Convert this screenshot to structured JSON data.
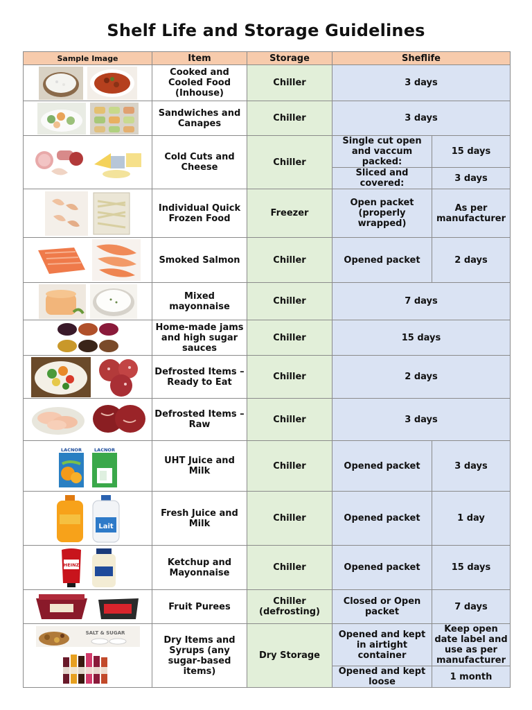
{
  "title": "Shelf Life and Storage Guidelines",
  "headers": {
    "image": "Sample Image",
    "item": "Item",
    "storage": "Storage",
    "shelflife": "Sheflife"
  },
  "rows": [
    {
      "item": "Cooked and Cooled Food (Inhouse)",
      "storage": "Chiller",
      "shelflife": "3 days"
    },
    {
      "item": "Sandwiches and Canapes",
      "storage": "Chiller",
      "shelflife": "3 days"
    },
    {
      "item": "Cold Cuts and Cheese",
      "storage": "Chiller",
      "sub": [
        {
          "condition": "Single cut open and vaccum packed:",
          "duration": "15 days"
        },
        {
          "condition": "Sliced and covered:",
          "duration": "3 days"
        }
      ]
    },
    {
      "item": "Individual Quick Frozen Food",
      "storage": "Freezer",
      "condition": "Open packet (properly wrapped)",
      "duration": "As per manufacturer"
    },
    {
      "item": "Smoked Salmon",
      "storage": "Chiller",
      "condition": "Opened packet",
      "duration": "2 days"
    },
    {
      "item": "Mixed mayonnaise",
      "storage": "Chiller",
      "shelflife": "7 days"
    },
    {
      "item": "Home-made jams and high sugar sauces",
      "storage": "Chiller",
      "shelflife": "15 days"
    },
    {
      "item": "Defrosted Items – Ready to Eat",
      "storage": "Chiller",
      "shelflife": "2 days"
    },
    {
      "item": "Defrosted Items – Raw",
      "storage": "Chiller",
      "shelflife": "3 days"
    },
    {
      "item": "UHT Juice and Milk",
      "storage": "Chiller",
      "condition": "Opened packet",
      "duration": "3 days"
    },
    {
      "item": "Fresh Juice and Milk",
      "storage": "Chiller",
      "condition": "Opened packet",
      "duration": "1 day"
    },
    {
      "item": "Ketchup and Mayonnaise",
      "storage": "Chiller",
      "condition": "Opened packet",
      "duration": "15 days"
    },
    {
      "item": "Fruit Purees",
      "storage": "Chiller (defrosting)",
      "condition": "Closed or Open packet",
      "duration": "7 days"
    },
    {
      "item": "Dry Items and Syrups (any sugar-based items)",
      "storage": "Dry Storage",
      "sub": [
        {
          "condition": "Opened and kept in airtight container",
          "duration": "Keep open date label and use as per manufacturer"
        },
        {
          "condition": "Opened and kept loose",
          "duration": "1 month"
        }
      ]
    }
  ],
  "image_labels": {
    "uht_brand_1": "LACNOR",
    "uht_brand_2": "LACNOR",
    "milk_brand": "Lait",
    "ketchup_brand": "HEINZ",
    "syrup_banner": "SALT & SUGAR"
  },
  "icons": [
    "rice-bowl-photo",
    "stew-bowl-photo",
    "canape-plate-photo",
    "canape-tray-photo",
    "cold-cuts-photo",
    "cheese-photo",
    "shrimp-bag-photo",
    "noodle-bag-photo",
    "salmon-fillet-photo",
    "smoked-salmon-photo",
    "mayo-dip-photo",
    "yogurt-dip-photo",
    "jam-bowls-photo",
    "salad-plate-photo",
    "salami-photo",
    "raw-chicken-photo",
    "raw-beef-photo",
    "juice-carton-photo",
    "milk-carton-photo",
    "orange-juice-bottle-photo",
    "milk-jug-photo",
    "ketchup-bottle-photo",
    "mayo-jar-photo",
    "puree-tub-photo",
    "puree-box-photo",
    "nuts-sugar-photo",
    "syrup-bottles-photo"
  ]
}
